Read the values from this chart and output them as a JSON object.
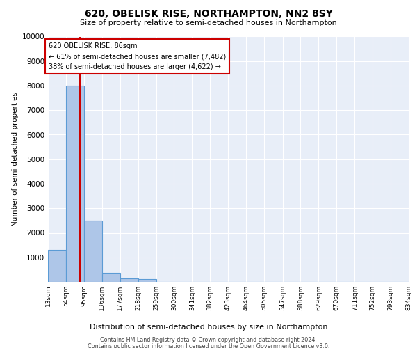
{
  "title": "620, OBELISK RISE, NORTHAMPTON, NN2 8SY",
  "subtitle": "Size of property relative to semi-detached houses in Northampton",
  "xlabel_bottom": "Distribution of semi-detached houses by size in Northampton",
  "ylabel": "Number of semi-detached properties",
  "bin_edges": [
    13,
    54,
    95,
    136,
    177,
    218,
    259,
    300,
    341,
    382,
    423,
    464,
    505,
    547,
    588,
    629,
    670,
    711,
    752,
    793,
    834
  ],
  "bar_heights": [
    1300,
    8000,
    2500,
    380,
    130,
    100,
    0,
    0,
    0,
    0,
    0,
    0,
    0,
    0,
    0,
    0,
    0,
    0,
    0,
    0
  ],
  "bar_color": "#aec6e8",
  "bar_edge_color": "#5b9bd5",
  "property_size": 86,
  "property_line_color": "#cc0000",
  "annotation_line1": "620 OBELISK RISE: 86sqm",
  "annotation_line2": "← 61% of semi-detached houses are smaller (7,482)",
  "annotation_line3": "38% of semi-detached houses are larger (4,622) →",
  "annotation_box_color": "#ffffff",
  "annotation_box_edge_color": "#cc0000",
  "ylim": [
    0,
    10000
  ],
  "yticks": [
    0,
    1000,
    2000,
    3000,
    4000,
    5000,
    6000,
    7000,
    8000,
    9000,
    10000
  ],
  "tick_labels": [
    "13sqm",
    "54sqm",
    "95sqm",
    "136sqm",
    "177sqm",
    "218sqm",
    "259sqm",
    "300sqm",
    "341sqm",
    "382sqm",
    "423sqm",
    "464sqm",
    "505sqm",
    "547sqm",
    "588sqm",
    "629sqm",
    "670sqm",
    "711sqm",
    "752sqm",
    "793sqm",
    "834sqm"
  ],
  "background_color": "#e8eef8",
  "grid_color": "#ffffff",
  "footer_line1": "Contains HM Land Registry data © Crown copyright and database right 2024.",
  "footer_line2": "Contains public sector information licensed under the Open Government Licence v3.0."
}
